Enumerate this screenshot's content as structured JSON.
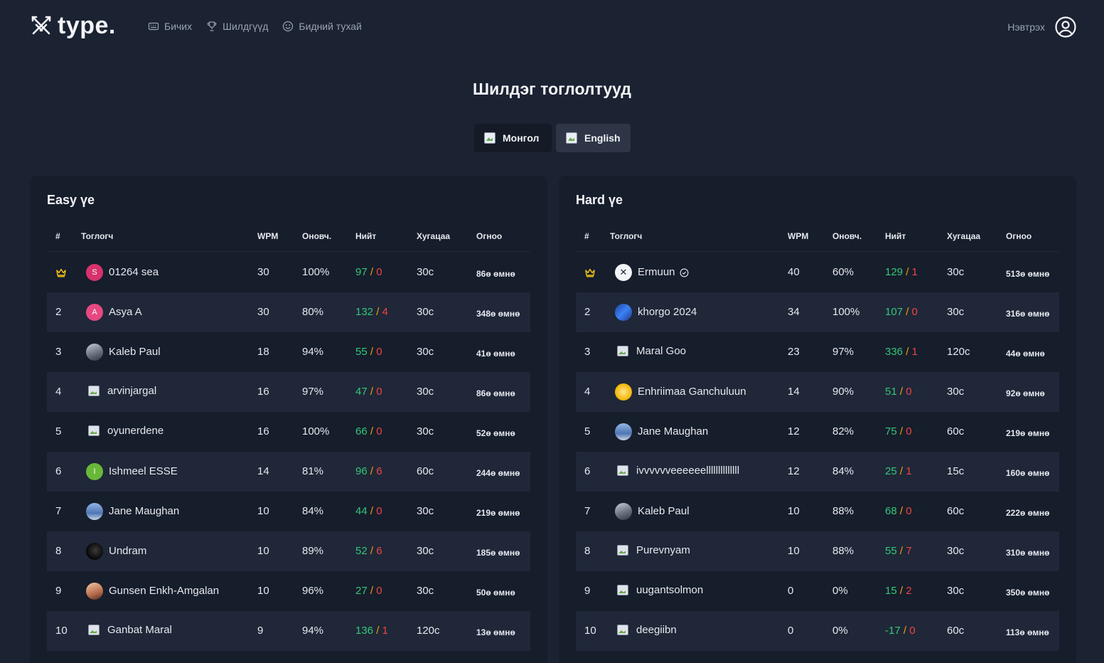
{
  "header": {
    "logo_text": "type.",
    "nav": [
      {
        "label": "Бичих",
        "icon": "keyboard-icon"
      },
      {
        "label": "Шилдгүүд",
        "icon": "trophy-icon"
      },
      {
        "label": "Бидний тухай",
        "icon": "smile-icon"
      }
    ],
    "login_label": "Нэвтрэх"
  },
  "page_title": "Шилдэг тоглолтууд",
  "languages": [
    {
      "label": "Монгол",
      "selected": false
    },
    {
      "label": "English",
      "selected": true
    }
  ],
  "columns": {
    "rank": "#",
    "player": "Тоглогч",
    "wpm": "WPM",
    "accuracy": "Оновч.",
    "score": "Нийт",
    "duration": "Хугацаа",
    "ago": "Огноо"
  },
  "easy": {
    "title": "Easy үе",
    "rows": [
      {
        "rank": "crown",
        "avatar": "pink",
        "initial": "S",
        "name": "01264 sea",
        "wpm": "30",
        "accuracy": "100%",
        "correct": "97",
        "wrong": "0",
        "duration": "30с",
        "ago": "86ө өмнө"
      },
      {
        "rank": "2",
        "avatar": "rose",
        "initial": "A",
        "name": "Asya A",
        "wpm": "30",
        "accuracy": "80%",
        "correct": "132",
        "wrong": "4",
        "duration": "30с",
        "ago": "348ө өмнө"
      },
      {
        "rank": "3",
        "avatar": "photo",
        "initial": "",
        "name": "Kaleb Paul",
        "wpm": "18",
        "accuracy": "94%",
        "correct": "55",
        "wrong": "0",
        "duration": "30с",
        "ago": "41ө өмнө"
      },
      {
        "rank": "4",
        "avatar": "broken",
        "initial": "",
        "name": "arvinjargal",
        "wpm": "16",
        "accuracy": "97%",
        "correct": "47",
        "wrong": "0",
        "duration": "30с",
        "ago": "86ө өмнө"
      },
      {
        "rank": "5",
        "avatar": "broken",
        "initial": "",
        "name": "oyunerdene",
        "wpm": "16",
        "accuracy": "100%",
        "correct": "66",
        "wrong": "0",
        "duration": "30с",
        "ago": "52ө өмнө"
      },
      {
        "rank": "6",
        "avatar": "green",
        "initial": "I",
        "name": "Ishmeel ESSE",
        "wpm": "14",
        "accuracy": "81%",
        "correct": "96",
        "wrong": "6",
        "duration": "60с",
        "ago": "244ө өмнө"
      },
      {
        "rank": "7",
        "avatar": "sky",
        "initial": "",
        "name": "Jane Maughan",
        "wpm": "10",
        "accuracy": "84%",
        "correct": "44",
        "wrong": "0",
        "duration": "30с",
        "ago": "219ө өмнө"
      },
      {
        "rank": "8",
        "avatar": "dark",
        "initial": "",
        "name": "Undram",
        "wpm": "10",
        "accuracy": "89%",
        "correct": "52",
        "wrong": "6",
        "duration": "30с",
        "ago": "185ө өмнө"
      },
      {
        "rank": "9",
        "avatar": "warm",
        "initial": "",
        "name": "Gunsen Enkh-Amgalan",
        "wpm": "10",
        "accuracy": "96%",
        "correct": "27",
        "wrong": "0",
        "duration": "30с",
        "ago": "50ө өмнө"
      },
      {
        "rank": "10",
        "avatar": "broken",
        "initial": "",
        "name": "Ganbat Maral",
        "wpm": "9",
        "accuracy": "94%",
        "correct": "136",
        "wrong": "1",
        "duration": "120с",
        "ago": "13ө өмнө"
      }
    ]
  },
  "hard": {
    "title": "Hard үе",
    "rows": [
      {
        "rank": "crown",
        "avatar": "white",
        "initial": "✕",
        "name": "Ermuun",
        "verified": true,
        "wpm": "40",
        "accuracy": "60%",
        "correct": "129",
        "wrong": "1",
        "duration": "30с",
        "ago": "513ө өмнө"
      },
      {
        "rank": "2",
        "avatar": "blue",
        "initial": "",
        "name": "khorgo 2024",
        "wpm": "34",
        "accuracy": "100%",
        "correct": "107",
        "wrong": "0",
        "duration": "30с",
        "ago": "316ө өмнө"
      },
      {
        "rank": "3",
        "avatar": "broken",
        "initial": "",
        "name": "Maral Goo",
        "wpm": "23",
        "accuracy": "97%",
        "correct": "336",
        "wrong": "1",
        "duration": "120с",
        "ago": "44ө өмнө"
      },
      {
        "rank": "4",
        "avatar": "yellow",
        "initial": "",
        "name": "Enhriimaa Ganchuluun",
        "wpm": "14",
        "accuracy": "90%",
        "correct": "51",
        "wrong": "0",
        "duration": "30с",
        "ago": "92ө өмнө"
      },
      {
        "rank": "5",
        "avatar": "sky",
        "initial": "",
        "name": "Jane Maughan",
        "wpm": "12",
        "accuracy": "82%",
        "correct": "75",
        "wrong": "0",
        "duration": "60с",
        "ago": "219ө өмнө"
      },
      {
        "rank": "6",
        "avatar": "broken",
        "initial": "",
        "name": "ivvvvvveeeeeellllllllllllll",
        "wpm": "12",
        "accuracy": "84%",
        "correct": "25",
        "wrong": "1",
        "duration": "15с",
        "ago": "160ө өмнө"
      },
      {
        "rank": "7",
        "avatar": "photo",
        "initial": "",
        "name": "Kaleb Paul",
        "wpm": "10",
        "accuracy": "88%",
        "correct": "68",
        "wrong": "0",
        "duration": "60с",
        "ago": "222ө өмнө"
      },
      {
        "rank": "8",
        "avatar": "broken",
        "initial": "",
        "name": "Purevnyam",
        "wpm": "10",
        "accuracy": "88%",
        "correct": "55",
        "wrong": "7",
        "duration": "30с",
        "ago": "310ө өмнө"
      },
      {
        "rank": "9",
        "avatar": "broken",
        "initial": "",
        "name": "uugantsolmon",
        "wpm": "0",
        "accuracy": "0%",
        "correct": "15",
        "wrong": "2",
        "duration": "30с",
        "ago": "350ө өмнө"
      },
      {
        "rank": "10",
        "avatar": "broken",
        "initial": "",
        "name": "deegiibn",
        "wpm": "0",
        "accuracy": "0%",
        "correct": "-17",
        "wrong": "0",
        "duration": "60с",
        "ago": "113ө өмнө"
      }
    ]
  },
  "colors": {
    "background": "#1b2232",
    "card": "#161d2b",
    "row_alt": "#1f2738",
    "correct": "#34c77b",
    "wrong": "#ef4444",
    "separator": "#f59e0b",
    "crown": "#f5c518"
  }
}
